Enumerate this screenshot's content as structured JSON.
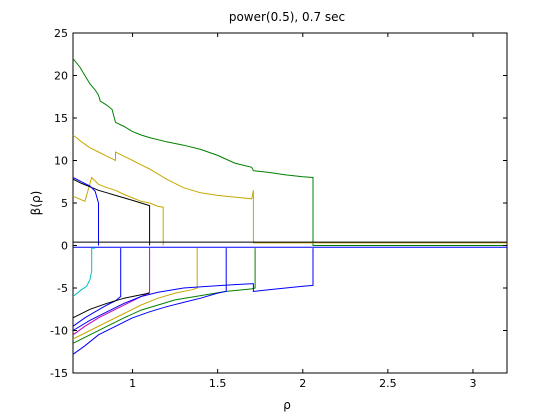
{
  "chart_data": {
    "type": "line",
    "title": "power(0.5), 0.7 sec",
    "xlabel": "ρ",
    "ylabel": "β(ρ)",
    "xlim": [
      0.65,
      3.2
    ],
    "ylim": [
      -15,
      25
    ],
    "xticks": [
      1,
      1.5,
      2,
      2.5,
      3
    ],
    "xtick_labels": [
      "1",
      "1.5",
      "2",
      "2.5",
      "3"
    ],
    "yticks": [
      -15,
      -10,
      -5,
      0,
      5,
      10,
      15,
      20,
      25
    ],
    "ytick_labels": [
      "-15",
      "-10",
      "-5",
      "0",
      "5",
      "10",
      "15",
      "20",
      "25"
    ],
    "grid": false,
    "series": [
      {
        "color": "#008000",
        "x": [
          0.65,
          0.69,
          0.72,
          0.75,
          0.78,
          0.8,
          0.81,
          0.85,
          0.88,
          0.9,
          0.95,
          1.0,
          1.05,
          1.1,
          1.2,
          1.3,
          1.4,
          1.5,
          1.6,
          1.7,
          1.71,
          1.8,
          1.9,
          2.0,
          2.06,
          2.06,
          2.06,
          3.2
        ],
        "y": [
          22.0,
          21.0,
          20.0,
          19.0,
          18.3,
          17.7,
          17.0,
          16.5,
          16.0,
          14.5,
          14.0,
          13.4,
          13.0,
          12.7,
          12.2,
          11.8,
          11.3,
          10.6,
          9.7,
          9.2,
          8.8,
          8.6,
          8.3,
          8.1,
          8.0,
          0.0,
          0.0,
          0.0
        ]
      },
      {
        "color": "#c8a800",
        "x": [
          0.65,
          0.7,
          0.75,
          0.8,
          0.85,
          0.9,
          0.9,
          0.95,
          1.0,
          1.05,
          1.1,
          1.2,
          1.3,
          1.4,
          1.5,
          1.6,
          1.7,
          1.71,
          1.71,
          3.2
        ],
        "y": [
          13.0,
          12.2,
          11.5,
          11.0,
          10.5,
          10.0,
          11.0,
          10.5,
          10.0,
          9.5,
          9.0,
          7.8,
          6.8,
          6.2,
          5.9,
          5.7,
          5.5,
          6.5,
          0.3,
          0.3
        ]
      },
      {
        "color": "#c8a800",
        "x": [
          0.65,
          0.72,
          0.76,
          0.8,
          0.85,
          0.9,
          0.95,
          1.0,
          1.05,
          1.1,
          1.15,
          1.18,
          1.18
        ],
        "y": [
          5.8,
          5.2,
          8.0,
          7.2,
          6.8,
          6.5,
          6.0,
          5.6,
          5.2,
          5.0,
          4.6,
          4.5,
          0.0
        ]
      },
      {
        "color": "#000000",
        "x": [
          0.65,
          0.7,
          0.75,
          0.8,
          0.85,
          0.9,
          0.95,
          1.0,
          1.05,
          1.1,
          1.1
        ],
        "y": [
          7.8,
          7.3,
          6.9,
          6.5,
          6.2,
          5.9,
          5.6,
          5.3,
          5.0,
          4.7,
          0.0
        ]
      },
      {
        "color": "#0000ff",
        "x": [
          0.65,
          0.7,
          0.75,
          0.78,
          0.8,
          0.8
        ],
        "y": [
          8.0,
          7.5,
          7.0,
          6.4,
          5.0,
          0.0
        ]
      },
      {
        "color": "#0000ff",
        "x": [
          0.65,
          3.2
        ],
        "y": [
          -0.2,
          -0.2
        ]
      },
      {
        "color": "#000000",
        "x": [
          0.65,
          3.2
        ],
        "y": [
          0.4,
          0.4
        ]
      },
      {
        "color": "#00c0c0",
        "x": [
          0.65,
          0.7,
          0.73,
          0.75,
          0.76,
          0.76,
          0.78,
          0.78
        ],
        "y": [
          -6.0,
          -5.2,
          -4.8,
          -4.0,
          -3.0,
          -0.3,
          -0.3,
          -0.3
        ]
      },
      {
        "color": "#0000ff",
        "x": [
          0.65,
          0.72,
          0.78,
          0.85,
          0.9,
          0.93,
          0.93
        ],
        "y": [
          -9.5,
          -8.5,
          -7.8,
          -7.0,
          -6.5,
          -6.0,
          -0.3
        ]
      },
      {
        "color": "#c000c0",
        "x": [
          0.65,
          0.72,
          0.8,
          0.9,
          1.0,
          1.1,
          1.1
        ],
        "y": [
          -10.5,
          -9.5,
          -8.5,
          -7.5,
          -6.5,
          -5.5,
          -0.3
        ]
      },
      {
        "color": "#c8a800",
        "x": [
          0.65,
          0.75,
          0.85,
          0.95,
          1.05,
          1.15,
          1.25,
          1.35,
          1.38,
          1.38
        ],
        "y": [
          -11.0,
          -10.0,
          -9.0,
          -8.0,
          -7.0,
          -6.2,
          -5.6,
          -5.2,
          -5.0,
          -0.3
        ]
      },
      {
        "color": "#008000",
        "x": [
          0.65,
          0.75,
          0.85,
          0.95,
          1.05,
          1.15,
          1.25,
          1.4,
          1.55,
          1.7,
          1.72,
          1.72
        ],
        "y": [
          -11.5,
          -10.5,
          -9.5,
          -8.5,
          -7.6,
          -7.0,
          -6.4,
          -5.9,
          -5.4,
          -5.1,
          -5.0,
          -0.3
        ]
      },
      {
        "color": "#0000ff",
        "x": [
          0.65,
          0.72,
          0.8,
          0.9,
          1.0,
          1.1,
          1.2,
          1.3,
          1.4,
          1.5,
          1.55,
          1.55
        ],
        "y": [
          -12.8,
          -11.8,
          -10.5,
          -9.5,
          -8.5,
          -7.8,
          -7.2,
          -6.7,
          -6.2,
          -5.6,
          -5.4,
          -0.3
        ]
      },
      {
        "color": "#0000ff",
        "x": [
          0.65,
          0.75,
          0.85,
          0.95,
          1.05,
          1.15,
          1.3,
          1.45,
          1.6,
          1.7,
          1.71,
          1.71,
          1.8,
          1.9,
          2.0,
          2.06,
          2.06
        ],
        "y": [
          -10.0,
          -8.8,
          -7.8,
          -6.8,
          -6.0,
          -5.5,
          -5.0,
          -4.8,
          -4.6,
          -4.5,
          -4.5,
          -5.4,
          -5.2,
          -5.0,
          -4.8,
          -4.7,
          -0.3
        ]
      },
      {
        "color": "#000000",
        "x": [
          0.65,
          0.75,
          0.85,
          0.95,
          1.05,
          1.1
        ],
        "y": [
          -8.5,
          -7.5,
          -6.8,
          -6.2,
          -5.8,
          -5.6
        ]
      }
    ]
  }
}
